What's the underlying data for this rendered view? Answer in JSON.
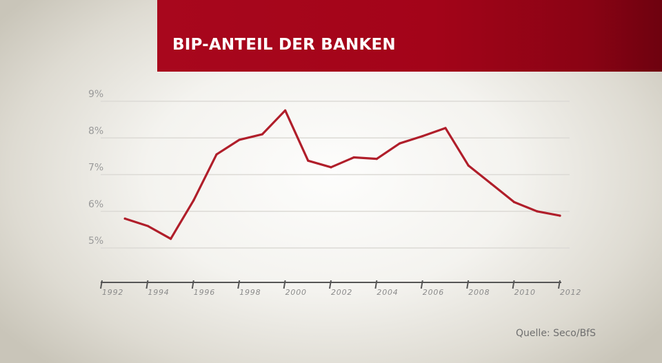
{
  "title": "BIP-ANTEIL DER BANKEN",
  "source": "Quelle: Seco/BfS",
  "colors": {
    "banner": "#a30419",
    "line": "#b01e2a",
    "grid": "#dcdad5",
    "axis": "#555555",
    "labels": "#9a9a9a"
  },
  "chart_data": {
    "type": "line",
    "title": "BIP-ANTEIL DER BANKEN",
    "xlabel": "",
    "ylabel": "",
    "ylim": [
      5,
      9
    ],
    "y_ticks": [
      5,
      6,
      7,
      8,
      9
    ],
    "y_tick_labels": [
      "5%",
      "6%",
      "7%",
      "8%",
      "9%"
    ],
    "x_ticks": [
      1992,
      1994,
      1996,
      1998,
      2000,
      2002,
      2004,
      2006,
      2008,
      2010,
      2012
    ],
    "x_tick_labels": [
      "1992",
      "1994",
      "1996",
      "1998",
      "2000",
      "2002",
      "2004",
      "2006",
      "2008",
      "2010",
      "2012"
    ],
    "grid": true,
    "series": [
      {
        "x": [
          1993,
          1994,
          1995,
          1996,
          1997,
          1998,
          1999,
          2000,
          2001,
          2002,
          2003,
          2004,
          2005,
          2006,
          2007,
          2008,
          2009,
          2010,
          2011,
          2012
        ],
        "values": [
          5.8,
          5.6,
          5.25,
          6.3,
          7.55,
          7.95,
          8.1,
          8.75,
          7.38,
          7.2,
          7.47,
          7.43,
          7.85,
          8.05,
          8.27,
          7.25,
          6.75,
          6.25,
          6.0,
          5.88
        ]
      }
    ]
  }
}
